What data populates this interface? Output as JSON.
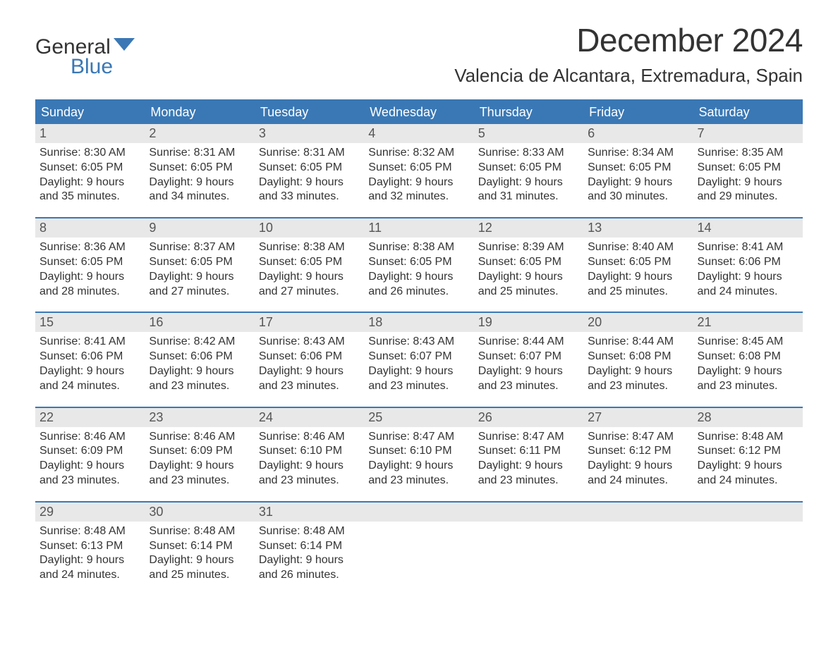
{
  "logo": {
    "word1": "General",
    "word2": "Blue"
  },
  "title": "December 2024",
  "location": "Valencia de Alcantara, Extremadura, Spain",
  "colors": {
    "header_bg": "#3a78b5",
    "header_text": "#ffffff",
    "daynum_bg": "#e8e8e8",
    "body_bg": "#ffffff",
    "text": "#333333",
    "logo_blue": "#3a78b5",
    "week_border": "#3a78b5"
  },
  "typography": {
    "title_fontsize": 46,
    "location_fontsize": 26,
    "header_fontsize": 18,
    "daynum_fontsize": 18,
    "cell_fontsize": 16,
    "logo_fontsize": 30
  },
  "dayNames": [
    "Sunday",
    "Monday",
    "Tuesday",
    "Wednesday",
    "Thursday",
    "Friday",
    "Saturday"
  ],
  "labels": {
    "sunrise": "Sunrise:",
    "sunset": "Sunset:",
    "daylight": "Daylight:"
  },
  "weeks": [
    [
      {
        "num": "1",
        "sunrise": "8:30 AM",
        "sunset": "6:05 PM",
        "daylight1": "9 hours",
        "daylight2": "and 35 minutes."
      },
      {
        "num": "2",
        "sunrise": "8:31 AM",
        "sunset": "6:05 PM",
        "daylight1": "9 hours",
        "daylight2": "and 34 minutes."
      },
      {
        "num": "3",
        "sunrise": "8:31 AM",
        "sunset": "6:05 PM",
        "daylight1": "9 hours",
        "daylight2": "and 33 minutes."
      },
      {
        "num": "4",
        "sunrise": "8:32 AM",
        "sunset": "6:05 PM",
        "daylight1": "9 hours",
        "daylight2": "and 32 minutes."
      },
      {
        "num": "5",
        "sunrise": "8:33 AM",
        "sunset": "6:05 PM",
        "daylight1": "9 hours",
        "daylight2": "and 31 minutes."
      },
      {
        "num": "6",
        "sunrise": "8:34 AM",
        "sunset": "6:05 PM",
        "daylight1": "9 hours",
        "daylight2": "and 30 minutes."
      },
      {
        "num": "7",
        "sunrise": "8:35 AM",
        "sunset": "6:05 PM",
        "daylight1": "9 hours",
        "daylight2": "and 29 minutes."
      }
    ],
    [
      {
        "num": "8",
        "sunrise": "8:36 AM",
        "sunset": "6:05 PM",
        "daylight1": "9 hours",
        "daylight2": "and 28 minutes."
      },
      {
        "num": "9",
        "sunrise": "8:37 AM",
        "sunset": "6:05 PM",
        "daylight1": "9 hours",
        "daylight2": "and 27 minutes."
      },
      {
        "num": "10",
        "sunrise": "8:38 AM",
        "sunset": "6:05 PM",
        "daylight1": "9 hours",
        "daylight2": "and 27 minutes."
      },
      {
        "num": "11",
        "sunrise": "8:38 AM",
        "sunset": "6:05 PM",
        "daylight1": "9 hours",
        "daylight2": "and 26 minutes."
      },
      {
        "num": "12",
        "sunrise": "8:39 AM",
        "sunset": "6:05 PM",
        "daylight1": "9 hours",
        "daylight2": "and 25 minutes."
      },
      {
        "num": "13",
        "sunrise": "8:40 AM",
        "sunset": "6:05 PM",
        "daylight1": "9 hours",
        "daylight2": "and 25 minutes."
      },
      {
        "num": "14",
        "sunrise": "8:41 AM",
        "sunset": "6:06 PM",
        "daylight1": "9 hours",
        "daylight2": "and 24 minutes."
      }
    ],
    [
      {
        "num": "15",
        "sunrise": "8:41 AM",
        "sunset": "6:06 PM",
        "daylight1": "9 hours",
        "daylight2": "and 24 minutes."
      },
      {
        "num": "16",
        "sunrise": "8:42 AM",
        "sunset": "6:06 PM",
        "daylight1": "9 hours",
        "daylight2": "and 23 minutes."
      },
      {
        "num": "17",
        "sunrise": "8:43 AM",
        "sunset": "6:06 PM",
        "daylight1": "9 hours",
        "daylight2": "and 23 minutes."
      },
      {
        "num": "18",
        "sunrise": "8:43 AM",
        "sunset": "6:07 PM",
        "daylight1": "9 hours",
        "daylight2": "and 23 minutes."
      },
      {
        "num": "19",
        "sunrise": "8:44 AM",
        "sunset": "6:07 PM",
        "daylight1": "9 hours",
        "daylight2": "and 23 minutes."
      },
      {
        "num": "20",
        "sunrise": "8:44 AM",
        "sunset": "6:08 PM",
        "daylight1": "9 hours",
        "daylight2": "and 23 minutes."
      },
      {
        "num": "21",
        "sunrise": "8:45 AM",
        "sunset": "6:08 PM",
        "daylight1": "9 hours",
        "daylight2": "and 23 minutes."
      }
    ],
    [
      {
        "num": "22",
        "sunrise": "8:46 AM",
        "sunset": "6:09 PM",
        "daylight1": "9 hours",
        "daylight2": "and 23 minutes."
      },
      {
        "num": "23",
        "sunrise": "8:46 AM",
        "sunset": "6:09 PM",
        "daylight1": "9 hours",
        "daylight2": "and 23 minutes."
      },
      {
        "num": "24",
        "sunrise": "8:46 AM",
        "sunset": "6:10 PM",
        "daylight1": "9 hours",
        "daylight2": "and 23 minutes."
      },
      {
        "num": "25",
        "sunrise": "8:47 AM",
        "sunset": "6:10 PM",
        "daylight1": "9 hours",
        "daylight2": "and 23 minutes."
      },
      {
        "num": "26",
        "sunrise": "8:47 AM",
        "sunset": "6:11 PM",
        "daylight1": "9 hours",
        "daylight2": "and 23 minutes."
      },
      {
        "num": "27",
        "sunrise": "8:47 AM",
        "sunset": "6:12 PM",
        "daylight1": "9 hours",
        "daylight2": "and 24 minutes."
      },
      {
        "num": "28",
        "sunrise": "8:48 AM",
        "sunset": "6:12 PM",
        "daylight1": "9 hours",
        "daylight2": "and 24 minutes."
      }
    ],
    [
      {
        "num": "29",
        "sunrise": "8:48 AM",
        "sunset": "6:13 PM",
        "daylight1": "9 hours",
        "daylight2": "and 24 minutes."
      },
      {
        "num": "30",
        "sunrise": "8:48 AM",
        "sunset": "6:14 PM",
        "daylight1": "9 hours",
        "daylight2": "and 25 minutes."
      },
      {
        "num": "31",
        "sunrise": "8:48 AM",
        "sunset": "6:14 PM",
        "daylight1": "9 hours",
        "daylight2": "and 26 minutes."
      },
      null,
      null,
      null,
      null
    ]
  ]
}
